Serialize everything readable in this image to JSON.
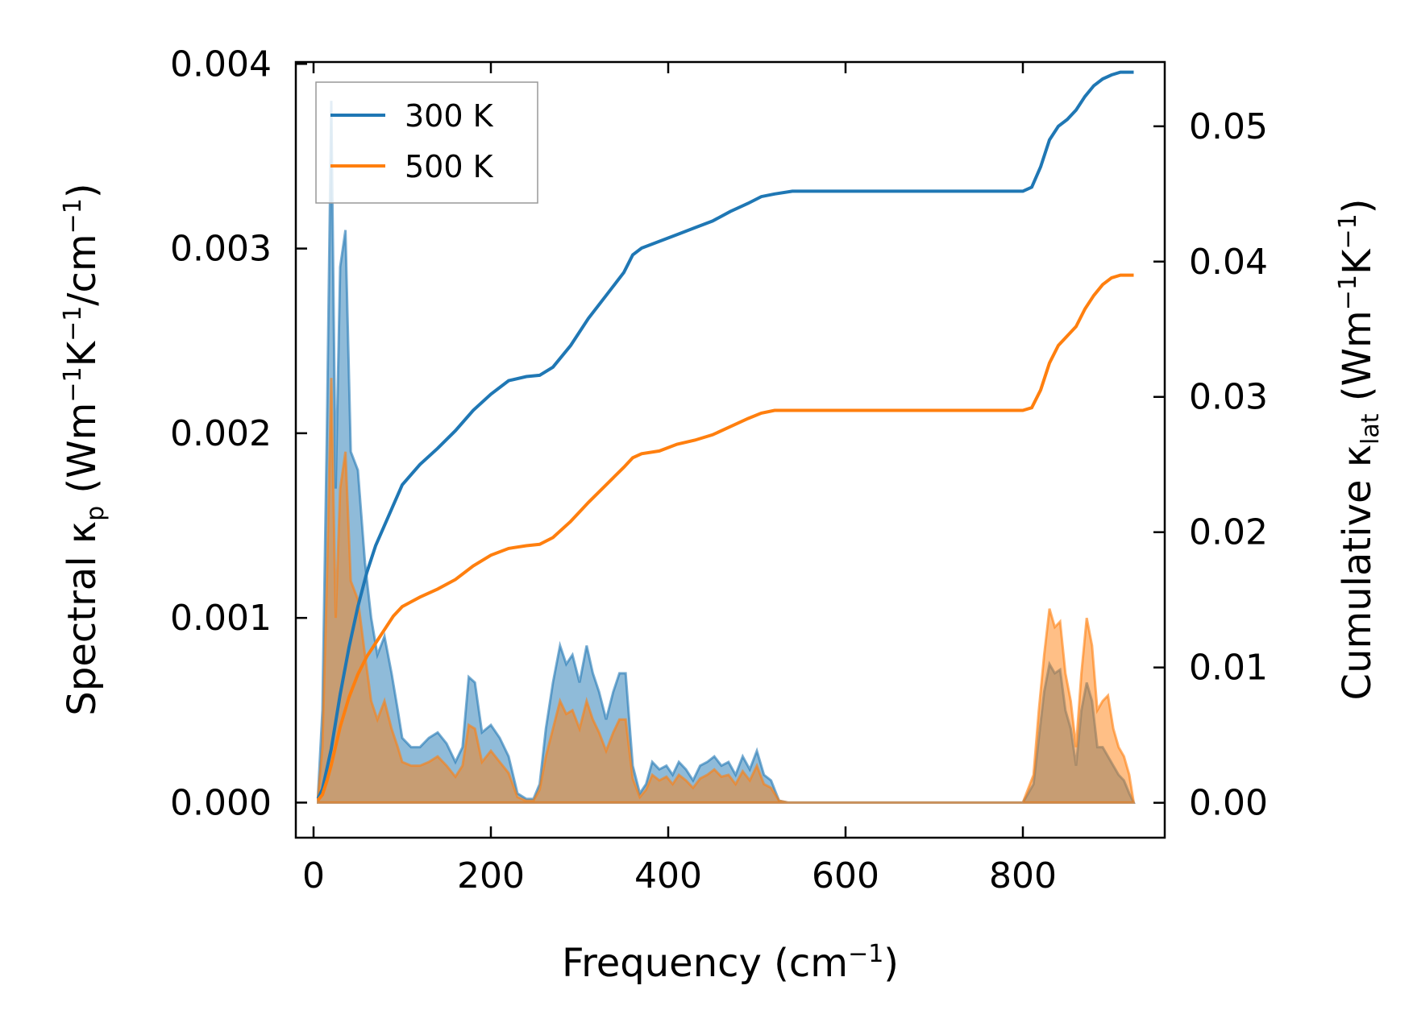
{
  "chart_data": {
    "type": "area",
    "xlabel": {
      "base": "Frequency (cm",
      "sup": "−1",
      "tail": ")"
    },
    "ylabel_left": {
      "pre": "Spectral κ",
      "sub": "p",
      "mid": " (Wm",
      "sup1": "−1",
      "k": "K",
      "sup2": "−1",
      "cm": "/cm",
      "sup3": "−1",
      "tail": ")"
    },
    "ylabel_right": {
      "pre": "Cumulative κ",
      "sub": "lat",
      "mid": " (Wm",
      "sup1": "−1",
      "k": "K",
      "sup2": "−1",
      "tail": ")"
    },
    "xlim": [
      -20,
      960
    ],
    "ylim_left": [
      -0.00019,
      0.00401
    ],
    "ylim_right": [
      -0.00258,
      0.05475
    ],
    "x_ticks": [
      0,
      200,
      400,
      600,
      800
    ],
    "x_tick_labels": [
      "0",
      "200",
      "400",
      "600",
      "800"
    ],
    "y_left_ticks": [
      0,
      0.001,
      0.002,
      0.003,
      0.004
    ],
    "y_left_tick_labels": [
      "0.000",
      "0.001",
      "0.002",
      "0.003",
      "0.004"
    ],
    "y_right_ticks": [
      0,
      0.01,
      0.02,
      0.03,
      0.04,
      0.05
    ],
    "y_right_tick_labels": [
      "0.00",
      "0.01",
      "0.02",
      "0.03",
      "0.04",
      "0.05"
    ],
    "legend": {
      "position": "upper-left"
    },
    "series": [
      {
        "name": "300 K",
        "color": "#1f77b4",
        "spectral": [
          [
            5,
            4e-05
          ],
          [
            10,
            0.0005
          ],
          [
            15,
            0.002
          ],
          [
            20,
            0.0038
          ],
          [
            25,
            0.0017
          ],
          [
            30,
            0.0029
          ],
          [
            36,
            0.0031
          ],
          [
            42,
            0.0019
          ],
          [
            50,
            0.0018
          ],
          [
            58,
            0.0013
          ],
          [
            65,
            0.001
          ],
          [
            72,
            0.0008
          ],
          [
            80,
            0.0009
          ],
          [
            88,
            0.0007
          ],
          [
            95,
            0.0005
          ],
          [
            100,
            0.00035
          ],
          [
            110,
            0.0003
          ],
          [
            120,
            0.0003
          ],
          [
            130,
            0.00035
          ],
          [
            140,
            0.00038
          ],
          [
            150,
            0.00032
          ],
          [
            160,
            0.00022
          ],
          [
            168,
            0.0003
          ],
          [
            175,
            0.00068
          ],
          [
            182,
            0.00065
          ],
          [
            190,
            0.00038
          ],
          [
            200,
            0.00042
          ],
          [
            210,
            0.00035
          ],
          [
            220,
            0.00025
          ],
          [
            230,
            5e-05
          ],
          [
            240,
            2e-05
          ],
          [
            248,
            2e-05
          ],
          [
            255,
            0.0001
          ],
          [
            262,
            0.0004
          ],
          [
            270,
            0.00065
          ],
          [
            278,
            0.00085
          ],
          [
            285,
            0.00075
          ],
          [
            292,
            0.0008
          ],
          [
            300,
            0.00065
          ],
          [
            308,
            0.00085
          ],
          [
            315,
            0.0007
          ],
          [
            322,
            0.0006
          ],
          [
            330,
            0.00045
          ],
          [
            338,
            0.0006
          ],
          [
            345,
            0.0007
          ],
          [
            352,
            0.0007
          ],
          [
            360,
            0.0002
          ],
          [
            368,
            5e-05
          ],
          [
            375,
            0.0001
          ],
          [
            382,
            0.00022
          ],
          [
            390,
            0.00018
          ],
          [
            398,
            0.0002
          ],
          [
            405,
            0.00015
          ],
          [
            412,
            0.00022
          ],
          [
            420,
            0.00018
          ],
          [
            428,
            0.00012
          ],
          [
            436,
            0.0002
          ],
          [
            444,
            0.00022
          ],
          [
            452,
            0.00025
          ],
          [
            460,
            0.0002
          ],
          [
            468,
            0.00022
          ],
          [
            476,
            0.00015
          ],
          [
            484,
            0.00025
          ],
          [
            492,
            0.00018
          ],
          [
            500,
            0.00028
          ],
          [
            508,
            0.00015
          ],
          [
            516,
            0.00012
          ],
          [
            525,
            1e-05
          ],
          [
            535,
            0
          ],
          [
            800,
            0
          ],
          [
            812,
            0.0001
          ],
          [
            818,
            0.00035
          ],
          [
            824,
            0.0006
          ],
          [
            830,
            0.00075
          ],
          [
            836,
            0.0007
          ],
          [
            842,
            0.00072
          ],
          [
            848,
            0.0005
          ],
          [
            854,
            0.0004
          ],
          [
            860,
            0.0002
          ],
          [
            866,
            0.0005
          ],
          [
            872,
            0.00065
          ],
          [
            878,
            0.00055
          ],
          [
            884,
            0.0003
          ],
          [
            890,
            0.0003
          ],
          [
            896,
            0.00025
          ],
          [
            902,
            0.0002
          ],
          [
            908,
            0.00015
          ],
          [
            914,
            0.00012
          ],
          [
            920,
            5e-05
          ],
          [
            925,
            0
          ]
        ],
        "cumulative": [
          [
            5,
            0.0003
          ],
          [
            10,
            0.001
          ],
          [
            15,
            0.0025
          ],
          [
            20,
            0.004
          ],
          [
            25,
            0.006
          ],
          [
            30,
            0.008
          ],
          [
            40,
            0.0115
          ],
          [
            50,
            0.0145
          ],
          [
            60,
            0.017
          ],
          [
            70,
            0.019
          ],
          [
            80,
            0.0205
          ],
          [
            90,
            0.022
          ],
          [
            100,
            0.0235
          ],
          [
            120,
            0.025
          ],
          [
            140,
            0.0262
          ],
          [
            160,
            0.0275
          ],
          [
            180,
            0.029
          ],
          [
            200,
            0.0302
          ],
          [
            220,
            0.0312
          ],
          [
            240,
            0.0315
          ],
          [
            255,
            0.0316
          ],
          [
            270,
            0.0322
          ],
          [
            290,
            0.0338
          ],
          [
            310,
            0.0358
          ],
          [
            330,
            0.0375
          ],
          [
            350,
            0.0392
          ],
          [
            360,
            0.0405
          ],
          [
            370,
            0.041
          ],
          [
            390,
            0.0415
          ],
          [
            410,
            0.042
          ],
          [
            430,
            0.0425
          ],
          [
            450,
            0.043
          ],
          [
            470,
            0.0437
          ],
          [
            490,
            0.0443
          ],
          [
            505,
            0.0448
          ],
          [
            520,
            0.045
          ],
          [
            540,
            0.0452
          ],
          [
            600,
            0.0452
          ],
          [
            700,
            0.0452
          ],
          [
            800,
            0.0452
          ],
          [
            810,
            0.0455
          ],
          [
            820,
            0.047
          ],
          [
            830,
            0.049
          ],
          [
            840,
            0.05
          ],
          [
            850,
            0.0505
          ],
          [
            860,
            0.0512
          ],
          [
            870,
            0.0522
          ],
          [
            880,
            0.053
          ],
          [
            890,
            0.0535
          ],
          [
            900,
            0.0538
          ],
          [
            910,
            0.054
          ],
          [
            925,
            0.054
          ]
        ]
      },
      {
        "name": "500 K",
        "color": "#ff7f0e",
        "spectral": [
          [
            5,
            3e-05
          ],
          [
            10,
            0.0003
          ],
          [
            15,
            0.0012
          ],
          [
            20,
            0.0023
          ],
          [
            25,
            0.001
          ],
          [
            30,
            0.0017
          ],
          [
            36,
            0.0019
          ],
          [
            42,
            0.0012
          ],
          [
            50,
            0.0011
          ],
          [
            58,
            0.0008
          ],
          [
            65,
            0.00055
          ],
          [
            72,
            0.00045
          ],
          [
            80,
            0.00055
          ],
          [
            88,
            0.0004
          ],
          [
            95,
            0.0003
          ],
          [
            100,
            0.00022
          ],
          [
            110,
            0.0002
          ],
          [
            120,
            0.0002
          ],
          [
            130,
            0.00022
          ],
          [
            140,
            0.00025
          ],
          [
            150,
            0.0002
          ],
          [
            160,
            0.00014
          ],
          [
            168,
            0.0002
          ],
          [
            175,
            0.00042
          ],
          [
            182,
            0.0004
          ],
          [
            190,
            0.00022
          ],
          [
            200,
            0.00028
          ],
          [
            210,
            0.00022
          ],
          [
            220,
            0.00016
          ],
          [
            230,
            3e-05
          ],
          [
            240,
            1e-05
          ],
          [
            248,
            1e-05
          ],
          [
            255,
            7e-05
          ],
          [
            262,
            0.00025
          ],
          [
            270,
            0.0004
          ],
          [
            278,
            0.00055
          ],
          [
            285,
            0.00048
          ],
          [
            292,
            0.0005
          ],
          [
            300,
            0.0004
          ],
          [
            308,
            0.00055
          ],
          [
            315,
            0.00045
          ],
          [
            322,
            0.00038
          ],
          [
            330,
            0.00028
          ],
          [
            338,
            0.00038
          ],
          [
            345,
            0.00045
          ],
          [
            352,
            0.00045
          ],
          [
            360,
            0.00013
          ],
          [
            368,
            3e-05
          ],
          [
            375,
            7e-05
          ],
          [
            382,
            0.00015
          ],
          [
            390,
            0.00012
          ],
          [
            398,
            0.00014
          ],
          [
            405,
            0.0001
          ],
          [
            412,
            0.00015
          ],
          [
            420,
            0.00012
          ],
          [
            428,
            8e-05
          ],
          [
            436,
            0.00013
          ],
          [
            444,
            0.00015
          ],
          [
            452,
            0.00018
          ],
          [
            460,
            0.00014
          ],
          [
            468,
            0.00015
          ],
          [
            476,
            0.0001
          ],
          [
            484,
            0.00017
          ],
          [
            492,
            0.00012
          ],
          [
            500,
            0.0002
          ],
          [
            508,
            0.0001
          ],
          [
            516,
            8e-05
          ],
          [
            525,
            1e-05
          ],
          [
            535,
            0
          ],
          [
            800,
            0
          ],
          [
            812,
            0.00015
          ],
          [
            818,
            0.0005
          ],
          [
            824,
            0.0008
          ],
          [
            830,
            0.00105
          ],
          [
            836,
            0.00095
          ],
          [
            842,
            0.00098
          ],
          [
            848,
            0.0007
          ],
          [
            854,
            0.00055
          ],
          [
            860,
            0.0003
          ],
          [
            866,
            0.0007
          ],
          [
            872,
            0.001
          ],
          [
            878,
            0.00085
          ],
          [
            884,
            0.0005
          ],
          [
            890,
            0.00055
          ],
          [
            896,
            0.00058
          ],
          [
            902,
            0.0004
          ],
          [
            908,
            0.0003
          ],
          [
            914,
            0.00025
          ],
          [
            920,
            0.00015
          ],
          [
            925,
            0
          ]
        ],
        "cumulative": [
          [
            5,
            0.0002
          ],
          [
            10,
            0.0006
          ],
          [
            15,
            0.0016
          ],
          [
            20,
            0.0028
          ],
          [
            25,
            0.0042
          ],
          [
            30,
            0.0056
          ],
          [
            40,
            0.0078
          ],
          [
            50,
            0.0095
          ],
          [
            60,
            0.0108
          ],
          [
            70,
            0.0118
          ],
          [
            80,
            0.0128
          ],
          [
            90,
            0.0138
          ],
          [
            100,
            0.0145
          ],
          [
            120,
            0.0152
          ],
          [
            140,
            0.0158
          ],
          [
            160,
            0.0165
          ],
          [
            180,
            0.0175
          ],
          [
            200,
            0.0183
          ],
          [
            220,
            0.0188
          ],
          [
            240,
            0.019
          ],
          [
            255,
            0.0191
          ],
          [
            270,
            0.0196
          ],
          [
            290,
            0.0208
          ],
          [
            310,
            0.0222
          ],
          [
            330,
            0.0235
          ],
          [
            350,
            0.0248
          ],
          [
            360,
            0.0255
          ],
          [
            370,
            0.0258
          ],
          [
            390,
            0.026
          ],
          [
            410,
            0.0265
          ],
          [
            430,
            0.0268
          ],
          [
            450,
            0.0272
          ],
          [
            470,
            0.0278
          ],
          [
            490,
            0.0284
          ],
          [
            505,
            0.0288
          ],
          [
            520,
            0.029
          ],
          [
            540,
            0.029
          ],
          [
            600,
            0.029
          ],
          [
            700,
            0.029
          ],
          [
            800,
            0.029
          ],
          [
            810,
            0.0292
          ],
          [
            820,
            0.0305
          ],
          [
            830,
            0.0325
          ],
          [
            840,
            0.0338
          ],
          [
            850,
            0.0345
          ],
          [
            860,
            0.0352
          ],
          [
            870,
            0.0365
          ],
          [
            880,
            0.0375
          ],
          [
            890,
            0.0383
          ],
          [
            900,
            0.0388
          ],
          [
            910,
            0.039
          ],
          [
            925,
            0.039
          ]
        ]
      }
    ]
  }
}
